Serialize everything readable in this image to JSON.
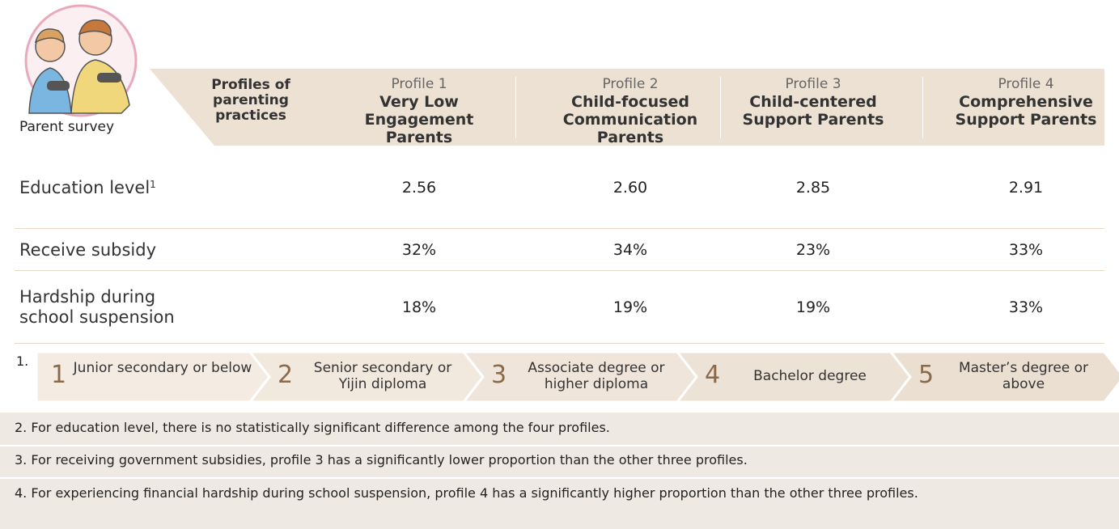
{
  "header": {
    "survey_label": "Parent survey",
    "profiles_label": "Profiles of parenting practices",
    "profiles": [
      {
        "number": "Profile 1",
        "name": "Very Low Engagement Parents"
      },
      {
        "number": "Profile 2",
        "name": "Child-focused Communication Parents"
      },
      {
        "number": "Profile 3",
        "name": "Child-centered Support Parents"
      },
      {
        "number": "Profile 4",
        "name": "Comprehensive Support Parents"
      }
    ]
  },
  "table": {
    "rows": [
      {
        "label": "Education level",
        "note_ref": "1",
        "cells": [
          "2.56",
          "2.60",
          "2.85",
          "2.91"
        ]
      },
      {
        "label": "Receive subsidy",
        "cells": [
          "32%",
          "34%",
          "23%",
          "33%"
        ]
      },
      {
        "label": "Hardship during school suspension",
        "cells": [
          "18%",
          "19%",
          "19%",
          "33%"
        ]
      }
    ]
  },
  "education_scale": {
    "marker": "1.",
    "items": [
      {
        "number": "1",
        "label": "Junior secondary or below"
      },
      {
        "number": "2",
        "label": "Senior secondary or Yijin diploma"
      },
      {
        "number": "3",
        "label": "Associate degree or higher diploma"
      },
      {
        "number": "4",
        "label": "Bachelor degree"
      },
      {
        "number": "5",
        "label": "Master’s degree or above"
      }
    ]
  },
  "notes": [
    "2. For education level, there is no statistically significant difference among the four profiles.",
    "3. For receiving government subsidies, profile 3 has a significantly lower proportion than the other three profiles.",
    "4. For experiencing financial hardship during school suspension, profile 4 has a significantly higher proportion than the other three profiles."
  ]
}
